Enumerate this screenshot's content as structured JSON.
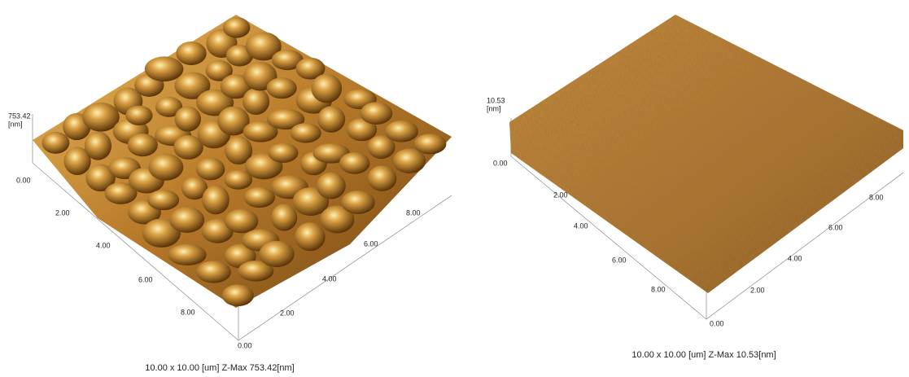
{
  "panels": [
    {
      "z_max": "753.42",
      "z_unit": "[nm]",
      "z_zero": "0.00",
      "left_axis_ticks": [
        "2.00",
        "4.00",
        "6.00",
        "8.00"
      ],
      "right_axis_ticks": [
        "0.00",
        "2.00",
        "4.00",
        "6.00",
        "8.00"
      ],
      "caption": "10.00 x 10.00 [um]  Z-Max 753.42[nm]"
    },
    {
      "z_max": "10.53",
      "z_unit": "[nm]",
      "z_zero": "0.00",
      "left_axis_ticks": [
        "2.00",
        "4.00",
        "6.00",
        "8.00"
      ],
      "right_axis_ticks": [
        "0.00",
        "2.00",
        "4.00",
        "6.00",
        "8.00"
      ],
      "caption": "10.00 x 10.00 [um]  Z-Max 10.53[nm]"
    }
  ]
}
